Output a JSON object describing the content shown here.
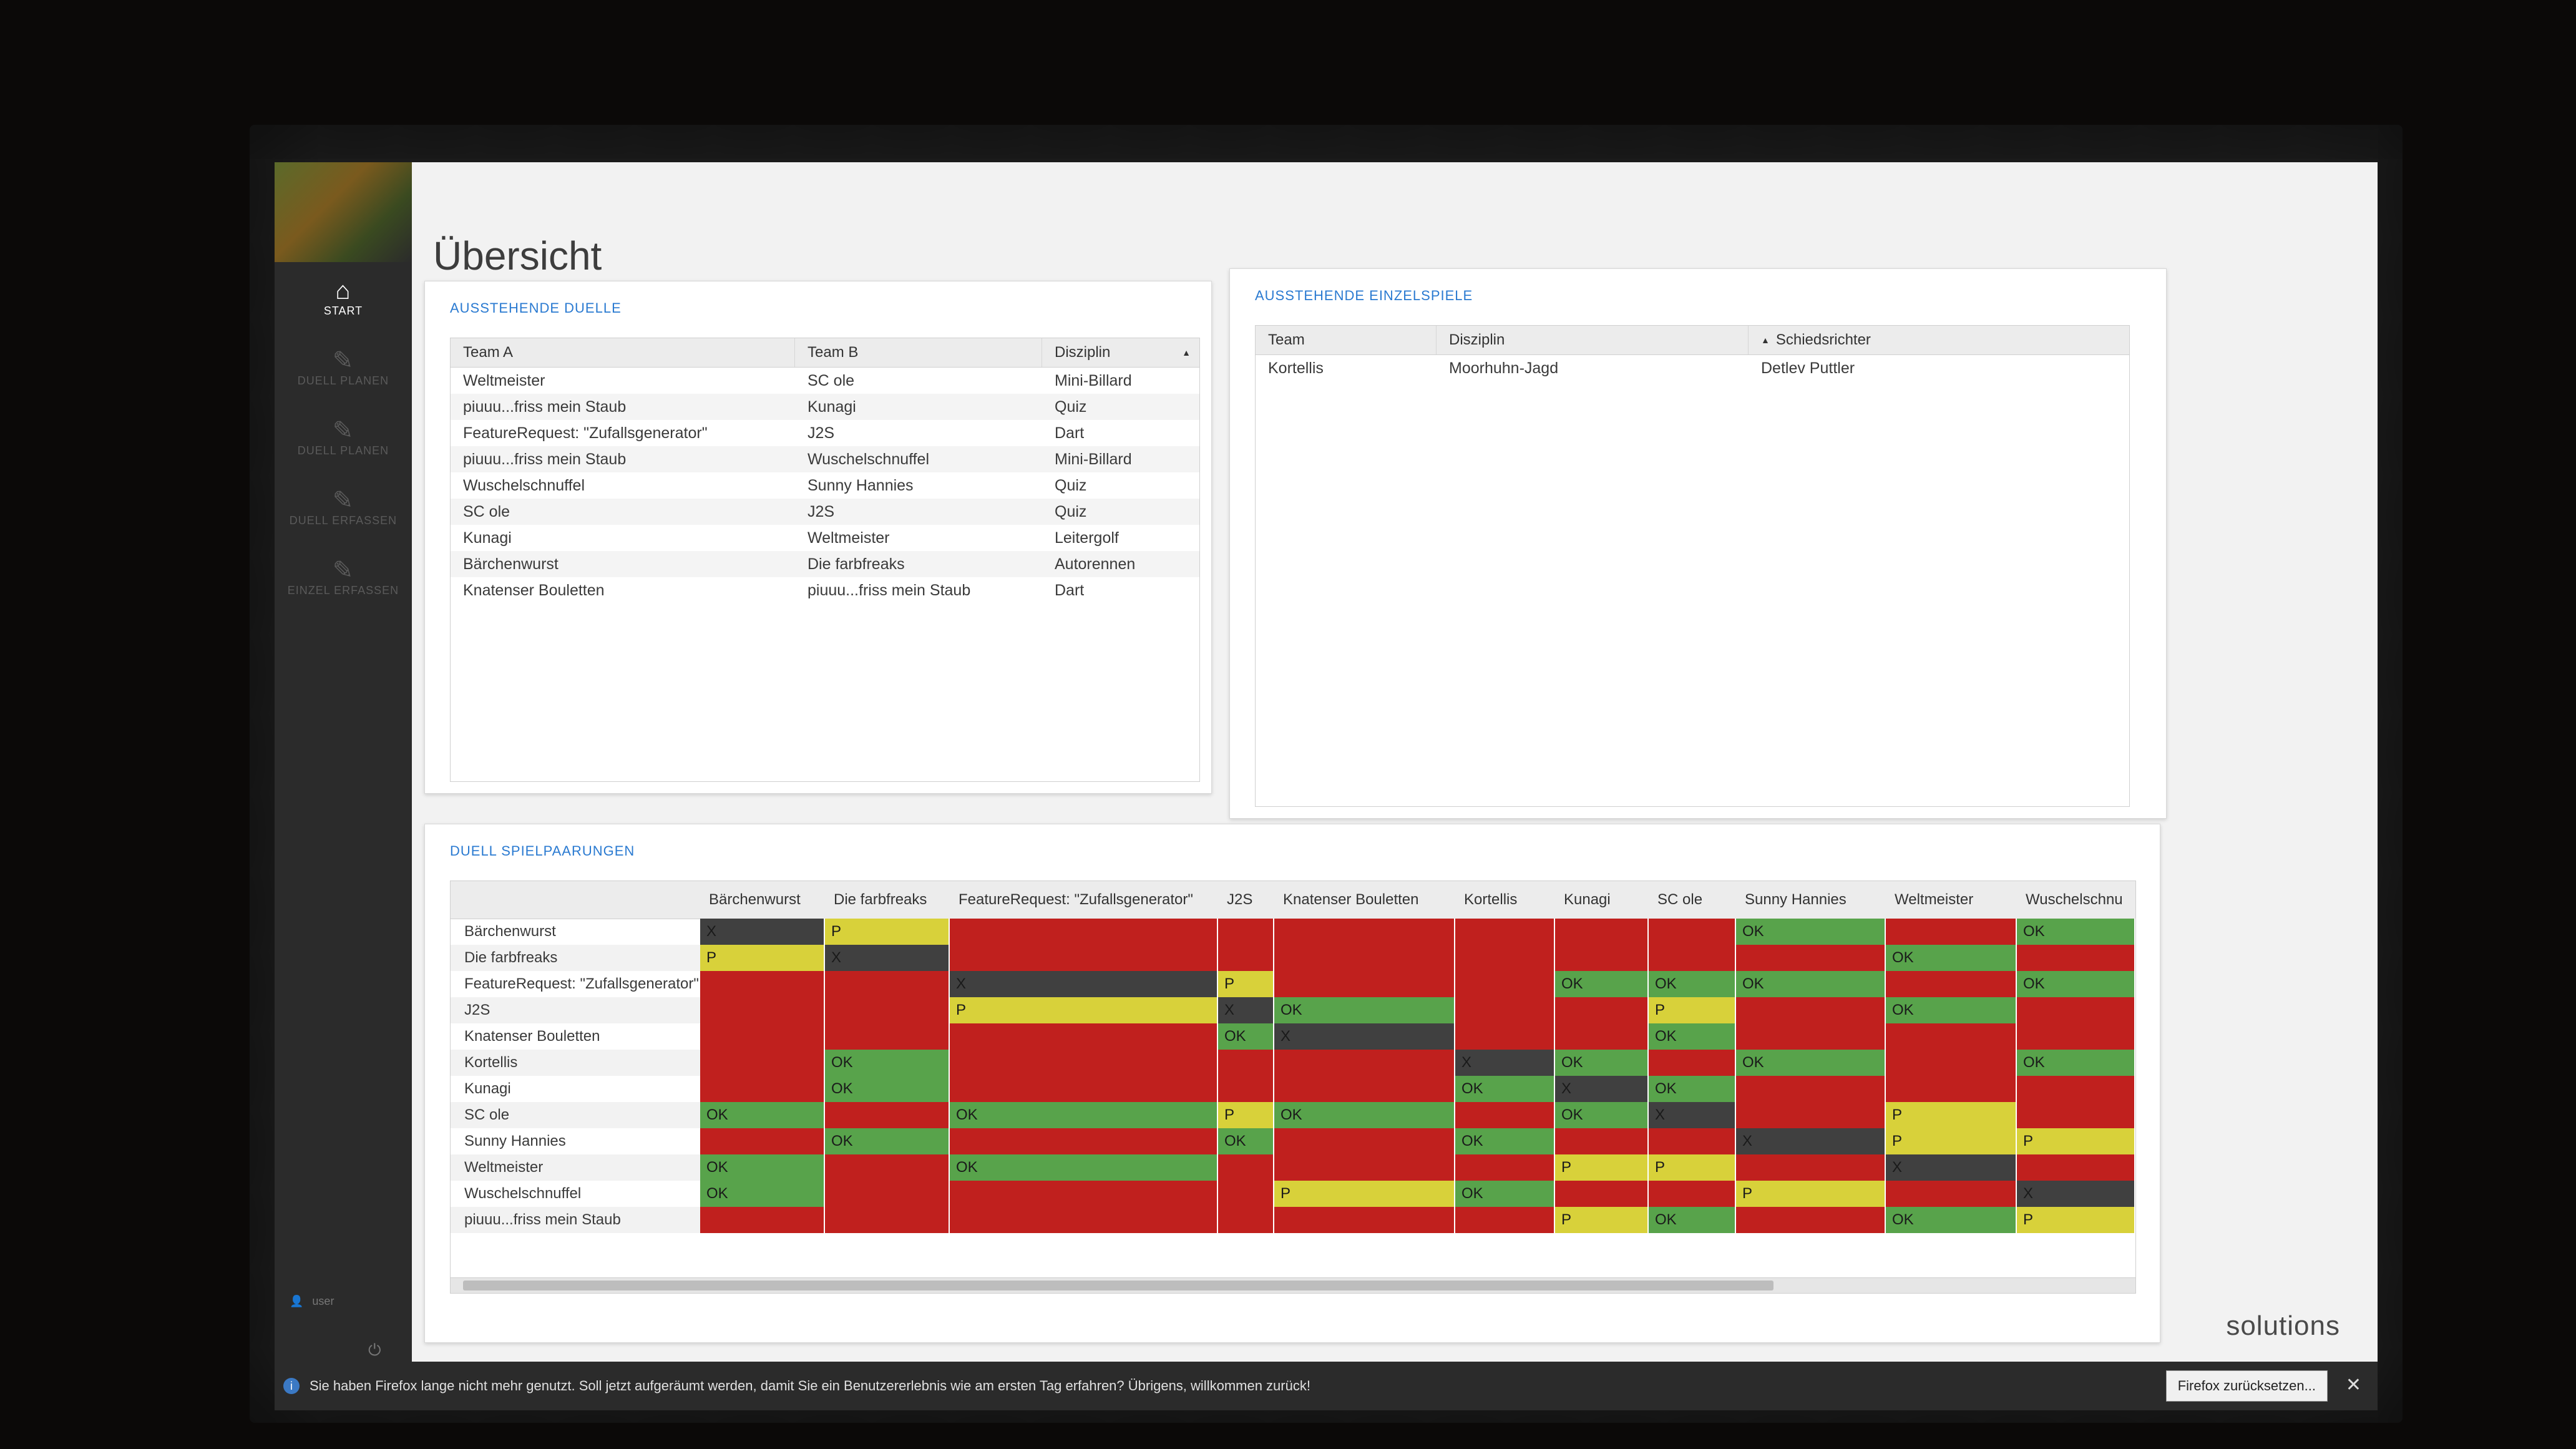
{
  "sidebar": {
    "items": [
      {
        "label": "START",
        "icon": "home-icon",
        "active": true
      },
      {
        "label": "DUELL PLANEN",
        "icon": "edit-icon",
        "active": false
      },
      {
        "label": "DUELL PLANEN",
        "icon": "edit-icon",
        "active": false
      },
      {
        "label": "DUELL ERFASSEN",
        "icon": "edit-icon",
        "active": false
      },
      {
        "label": "EINZEL ERFASSEN",
        "icon": "edit-icon",
        "active": false
      }
    ],
    "user": "user"
  },
  "page": {
    "title": "Übersicht"
  },
  "ausstehende_duelle": {
    "title": "AUSSTEHENDE DUELLE",
    "columns": [
      "Team A",
      "Team B",
      "Disziplin"
    ],
    "rows": [
      [
        "Weltmeister",
        "SC ole",
        "Mini-Billard"
      ],
      [
        "piuuu...friss mein Staub",
        "Kunagi",
        "Quiz"
      ],
      [
        "FeatureRequest: \"Zufallsgenerator\"",
        "J2S",
        "Dart"
      ],
      [
        "piuuu...friss mein Staub",
        "Wuschelschnuffel",
        "Mini-Billard"
      ],
      [
        "Wuschelschnuffel",
        "Sunny Hannies",
        "Quiz"
      ],
      [
        "SC ole",
        "J2S",
        "Quiz"
      ],
      [
        "Kunagi",
        "Weltmeister",
        "Leitergolf"
      ],
      [
        "Bärchenwurst",
        "Die farbfreaks",
        "Autorennen"
      ],
      [
        "Knatenser Bouletten",
        "piuuu...friss mein Staub",
        "Dart"
      ]
    ]
  },
  "ausstehende_einzelspiele": {
    "title": "AUSSTEHENDE EINZELSPIELE",
    "columns": [
      "Team",
      "Disziplin",
      "Schiedsrichter"
    ],
    "rows": [
      [
        "Kortellis",
        "Moorhuhn-Jagd",
        "Detlev Puttler"
      ]
    ]
  },
  "duell_spielpaarungen": {
    "title": "DUELL SPIELPAARUNGEN",
    "teams": [
      "Bärchenwurst",
      "Die farbfreaks",
      "FeatureRequest: \"Zufallsgenerator\"",
      "J2S",
      "Knatenser Bouletten",
      "Kortellis",
      "Kunagi",
      "SC ole",
      "Sunny Hannies",
      "Weltmeister",
      "Wuschelschnuffel",
      "piuuu...friss mein Staub"
    ],
    "columns": [
      "Bärchenwurst",
      "Die farbfreaks",
      "FeatureRequest: \"Zufallsgenerator\"",
      "J2S",
      "Knatenser Bouletten",
      "Kortellis",
      "Kunagi",
      "SC ole",
      "Sunny Hannies",
      "Weltmeister",
      "Wuschelschnu"
    ],
    "cells": [
      [
        "X",
        "P",
        "",
        "",
        "",
        "",
        "",
        "",
        "OK",
        "",
        "OK"
      ],
      [
        "P",
        "X",
        "",
        "",
        "",
        "",
        "",
        "",
        "",
        "OK",
        ""
      ],
      [
        "",
        "",
        "X",
        "P",
        "",
        "",
        "OK",
        "OK",
        "OK",
        "",
        "OK"
      ],
      [
        "",
        "",
        "P",
        "X",
        "OK",
        "",
        "",
        "P",
        "",
        "OK",
        ""
      ],
      [
        "",
        "",
        "",
        "OK",
        "X",
        "",
        "",
        "OK",
        "",
        "",
        ""
      ],
      [
        "",
        "OK",
        "",
        "",
        "",
        "X",
        "OK",
        "",
        "OK",
        "",
        "OK"
      ],
      [
        "",
        "OK",
        "",
        "",
        "",
        "OK",
        "X",
        "OK",
        "",
        "",
        ""
      ],
      [
        "OK",
        "",
        "OK",
        "P",
        "OK",
        "",
        "OK",
        "X",
        "",
        "P",
        ""
      ],
      [
        "",
        "OK",
        "",
        "OK",
        "",
        "OK",
        "",
        "",
        "X",
        "P",
        "P"
      ],
      [
        "OK",
        "",
        "OK",
        "",
        "",
        "",
        "P",
        "P",
        "",
        "X",
        ""
      ],
      [
        "OK",
        "",
        "",
        "",
        "P",
        "OK",
        "",
        "",
        "P",
        "",
        "X"
      ],
      [
        "",
        "",
        "",
        "",
        "",
        "",
        "P",
        "OK",
        "",
        "OK",
        "P"
      ]
    ],
    "legend_colors": {
      "empty": "#c0201e",
      "OK": "#58a34b",
      "P": "#d8d13a",
      "X": "#404040"
    }
  },
  "notification": {
    "text": "Sie haben Firefox lange nicht mehr genutzt. Soll jetzt aufgeräumt werden, damit Sie ein Benutzererlebnis wie am ersten Tag erfahren? Übrigens, willkommen zurück!",
    "button": "Firefox zurücksetzen...",
    "close": "✕"
  },
  "brand": "solutions"
}
